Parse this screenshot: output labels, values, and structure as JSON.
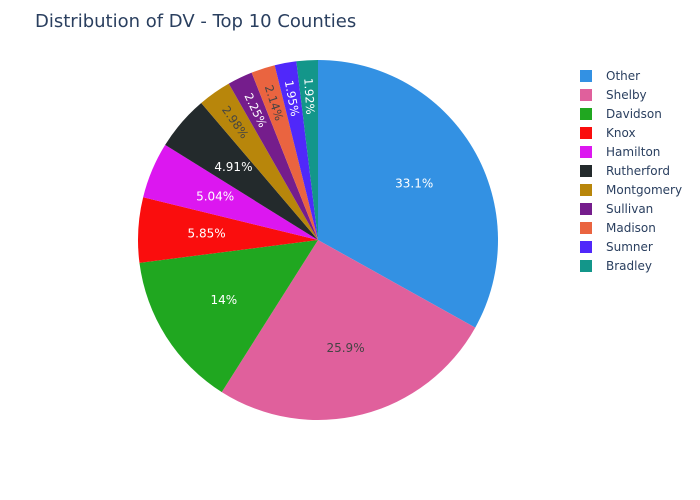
{
  "chart_data": {
    "type": "pie",
    "title": "Distribution of DV - Top 10 Counties",
    "slices": [
      {
        "label": "Other",
        "value": 33.1,
        "text": "33.1%",
        "color": "#3391e3",
        "text_color": "#ffffff"
      },
      {
        "label": "Shelby",
        "value": 25.9,
        "text": "25.9%",
        "color": "#e0609c",
        "text_color": "#444444"
      },
      {
        "label": "Davidson",
        "value": 14.0,
        "text": "14%",
        "color": "#20a720",
        "text_color": "#ffffff"
      },
      {
        "label": "Knox",
        "value": 5.85,
        "text": "5.85%",
        "color": "#fa0d0d",
        "text_color": "#ffffff"
      },
      {
        "label": "Hamilton",
        "value": 5.04,
        "text": "5.04%",
        "color": "#dc17f0",
        "text_color": "#ffffff"
      },
      {
        "label": "Rutherford",
        "value": 4.91,
        "text": "4.91%",
        "color": "#232a2c",
        "text_color": "#ffffff"
      },
      {
        "label": "Montgomery",
        "value": 2.98,
        "text": "2.98%",
        "color": "#b8860b",
        "text_color": "#444444"
      },
      {
        "label": "Sullivan",
        "value": 2.25,
        "text": "2.25%",
        "color": "#751d8c",
        "text_color": "#ffffff"
      },
      {
        "label": "Madison",
        "value": 2.14,
        "text": "2.14%",
        "color": "#ea6440",
        "text_color": "#444444"
      },
      {
        "label": "Sumner",
        "value": 1.95,
        "text": "1.95%",
        "color": "#5028fa",
        "text_color": "#ffffff"
      },
      {
        "label": "Bradley",
        "value": 1.92,
        "text": "1.92%",
        "color": "#13968a",
        "text_color": "#ffffff"
      }
    ],
    "legend_position": "right",
    "start_angle": "top",
    "direction": "clockwise"
  }
}
